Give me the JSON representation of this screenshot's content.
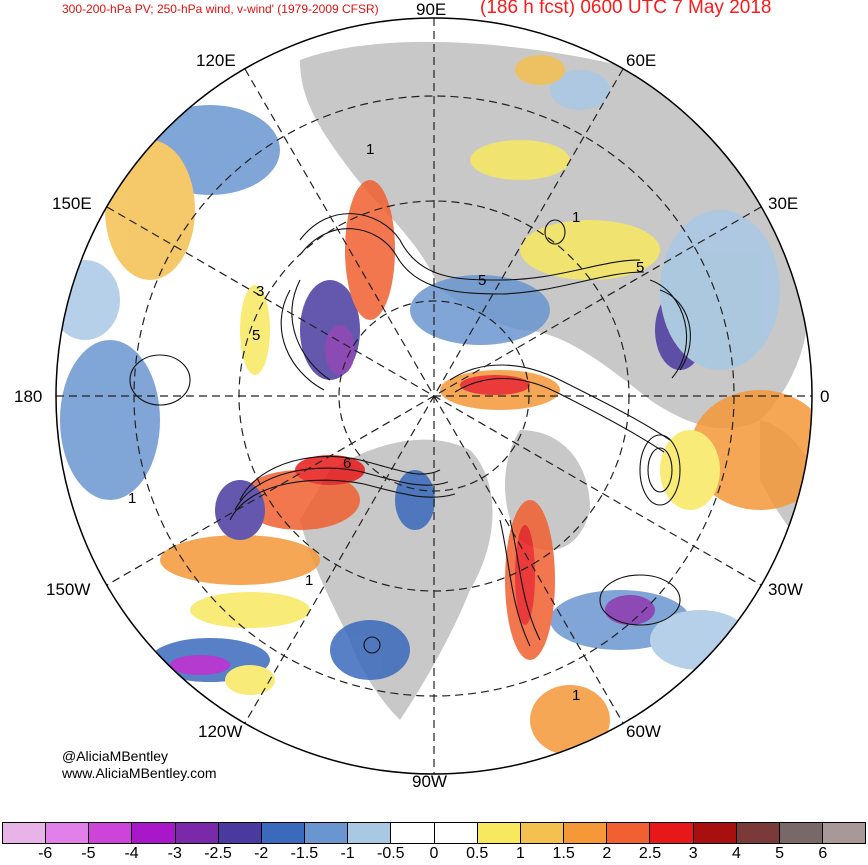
{
  "header": {
    "title_left": "300-200-hPa PV; 250-hPa wind, v-wind' (1979-2009 CFSR)",
    "title_right": "(186 h fcst) 0600 UTC 7 May 2018"
  },
  "map": {
    "projection": "north polar stereographic",
    "longitude_labels": {
      "lon_90e": "90E",
      "lon_60e": "60E",
      "lon_30e": "30E",
      "lon_0": "0",
      "lon_30w": "30W",
      "lon_60w": "60W",
      "lon_90w": "90W",
      "lon_120w": "120W",
      "lon_150w": "150W",
      "lon_180": "180",
      "lon_150e": "150E",
      "lon_120e": "120E"
    },
    "contour_labels": [
      "1",
      "1",
      "3",
      "5",
      "5",
      "6",
      "1",
      "1",
      "5",
      "1"
    ],
    "colors": {
      "land": "#c8c8c8",
      "ocean": "#ffffff",
      "contour": "#111111",
      "gridline": "#222222"
    }
  },
  "credits": {
    "handle": "@AliciaMBentley",
    "website": "www.AliciaMBentley.com"
  },
  "colorbar": {
    "colors": [
      "#e8b4e8",
      "#e080e8",
      "#cc44d8",
      "#a818c8",
      "#7a2aa8",
      "#4a3aa0",
      "#3a6abc",
      "#6a96d0",
      "#a8c8e4",
      "#ffffff",
      "#ffffff",
      "#f8e860",
      "#f4c050",
      "#f49838",
      "#f06030",
      "#e81818",
      "#a81010",
      "#7a3a3a",
      "#786868",
      "#a89898"
    ],
    "tick_labels": [
      "-6",
      "-5",
      "-4",
      "-3",
      "-2.5",
      "-2",
      "-1.5",
      "-1",
      "-0.5",
      "0",
      "0.5",
      "1",
      "1.5",
      "2",
      "2.5",
      "3",
      "4",
      "5",
      "6"
    ]
  }
}
